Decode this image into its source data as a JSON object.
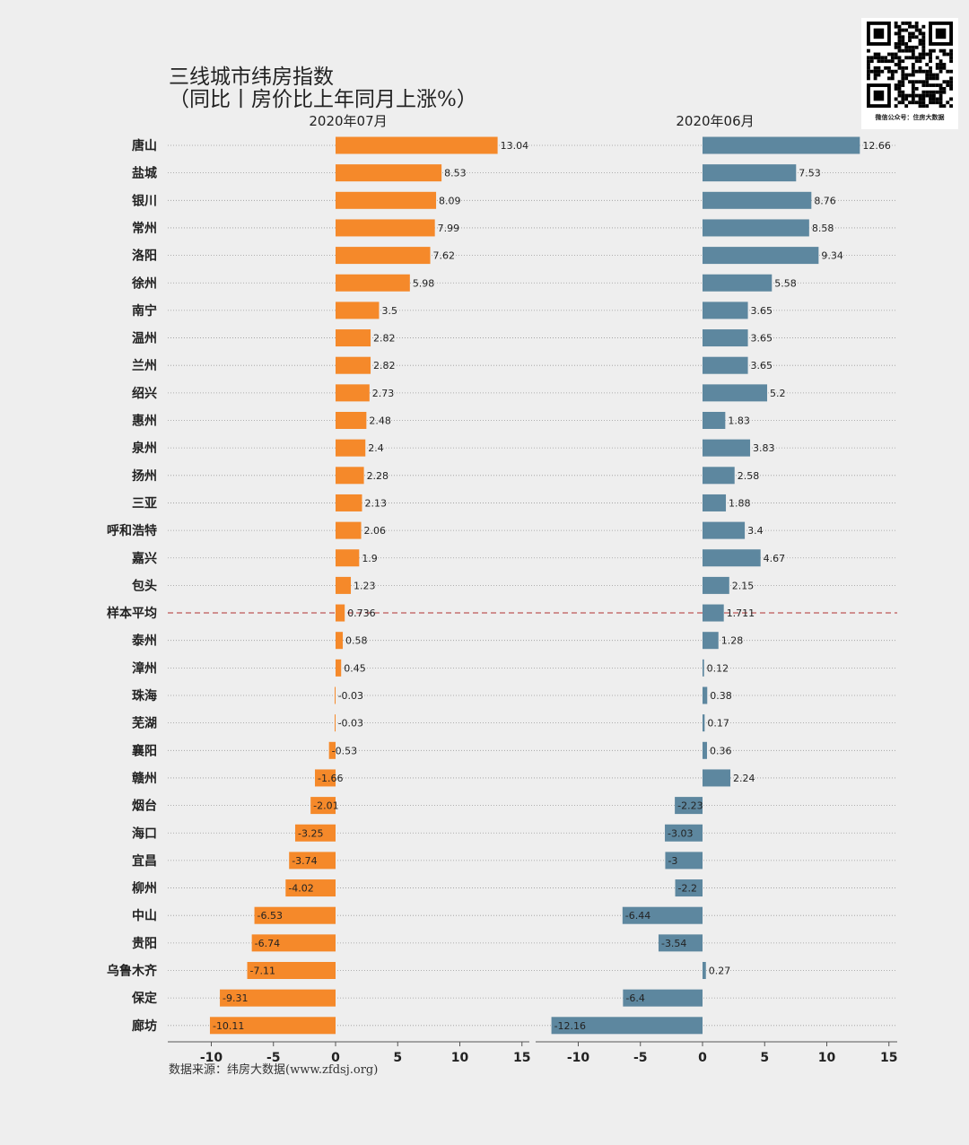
{
  "title_line1": "三线城市纬房指数",
  "title_line2": "（同比丨房价比上年同月上涨%）",
  "source": "数据来源：纬房大数据(www.zfdsj.org)",
  "qr_caption": "微信公众号：住房大数据",
  "colors": {
    "left_bar": "#f5892a",
    "right_bar": "#5d879f",
    "avg_line": "#b03030",
    "background": "#eeeeee"
  },
  "chart_data": {
    "type": "bar",
    "orientation": "horizontal",
    "categories": [
      "唐山",
      "盐城",
      "银川",
      "常州",
      "洛阳",
      "徐州",
      "南宁",
      "温州",
      "兰州",
      "绍兴",
      "惠州",
      "泉州",
      "扬州",
      "三亚",
      "呼和浩特",
      "嘉兴",
      "包头",
      "样本平均",
      "泰州",
      "漳州",
      "珠海",
      "芜湖",
      "襄阳",
      "赣州",
      "烟台",
      "海口",
      "宜昌",
      "柳州",
      "中山",
      "贵阳",
      "乌鲁木齐",
      "保定",
      "廊坊"
    ],
    "average_category": "样本平均",
    "series": [
      {
        "name": "2020年07月",
        "values": [
          13.04,
          8.53,
          8.09,
          7.99,
          7.62,
          5.98,
          3.5,
          2.82,
          2.82,
          2.73,
          2.48,
          2.4,
          2.28,
          2.13,
          2.06,
          1.9,
          1.23,
          0.736,
          0.58,
          0.45,
          -0.03,
          -0.03,
          -0.53,
          -1.66,
          -2.01,
          -3.25,
          -3.74,
          -4.02,
          -6.53,
          -6.74,
          -7.11,
          -9.31,
          -10.11
        ],
        "labels": [
          "13.04",
          "8.53",
          "8.09",
          "7.99",
          "7.62",
          "5.98",
          "3.5",
          "2.82",
          "2.82",
          "2.73",
          "2.48",
          "2.4",
          "2.28",
          "2.13",
          "2.06",
          "1.9",
          "1.23",
          "0.736",
          "0.58",
          "0.45",
          "-0.03",
          "-0.03",
          "-0.53",
          "-1.66",
          "-2.01",
          "-3.25",
          "-3.74",
          "-4.02",
          "-6.53",
          "-6.74",
          "-7.11",
          "-9.31",
          "-10.11"
        ],
        "xlim": [
          -13,
          16
        ],
        "ticks": [
          "-10",
          "-5",
          "0",
          "5",
          "10",
          "15"
        ]
      },
      {
        "name": "2020年06月",
        "values": [
          12.66,
          7.53,
          8.76,
          8.58,
          9.34,
          5.58,
          3.65,
          3.65,
          3.65,
          5.2,
          1.83,
          3.83,
          2.58,
          1.88,
          3.4,
          4.67,
          2.15,
          1.711,
          1.28,
          0.12,
          0.38,
          0.17,
          0.36,
          2.24,
          -2.23,
          -3.03,
          -3,
          -2.2,
          -6.44,
          -3.54,
          0.27,
          -6.4,
          -12.16
        ],
        "labels": [
          "12.66",
          "7.53",
          "8.76",
          "8.58",
          "9.34",
          "5.58",
          "3.65",
          "3.65",
          "3.65",
          "5.2",
          "1.83",
          "3.83",
          "2.58",
          "1.88",
          "3.4",
          "4.67",
          "2.15",
          "1.711",
          "1.28",
          "0.12",
          "0.38",
          "0.17",
          "0.36",
          "2.24",
          "-2.23",
          "-3.03",
          "-3",
          "-2.2",
          "-6.44",
          "-3.54",
          "0.27",
          "-6.4",
          "-12.16"
        ],
        "xlim": [
          -13,
          16
        ],
        "ticks": [
          "-10",
          "-5",
          "0",
          "5",
          "10",
          "15"
        ]
      }
    ]
  }
}
